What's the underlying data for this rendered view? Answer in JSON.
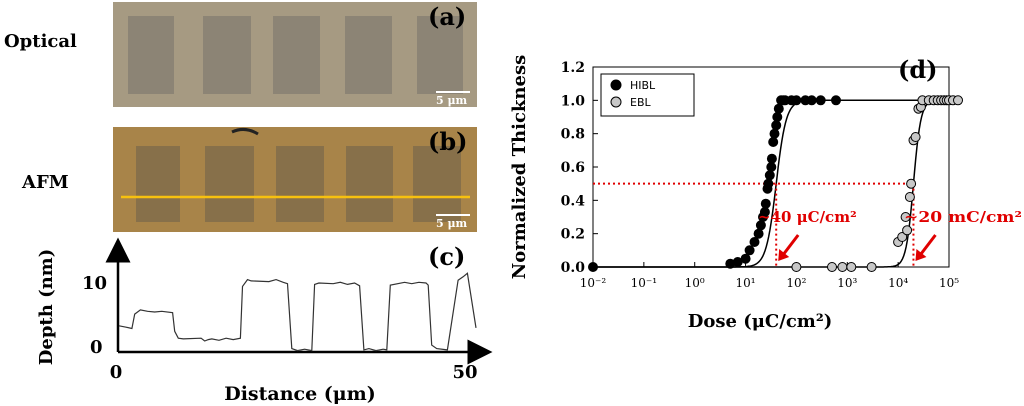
{
  "figure": {
    "panel_labels": {
      "a": "(a)",
      "b": "(b)",
      "c": "(c)",
      "d": "(d)"
    },
    "row_labels": {
      "optical": "Optical",
      "afm": "AFM"
    },
    "scale_bars": {
      "a": "5 μm",
      "b": "5 μm"
    },
    "colors": {
      "optical_bg": "#a69a82",
      "optical_pad": "#8c8475",
      "afm_bg": "#a88449",
      "afm_pad": "#87704a",
      "afm_line": "#f7c10f",
      "highlight": "#e00000"
    }
  },
  "chart_data": [
    {
      "type": "line",
      "panel": "(c)",
      "xlabel": "Distance (μm)",
      "ylabel": "Depth (nm)",
      "xticks": [
        "0",
        "50"
      ],
      "yticks": [
        "0",
        "10"
      ],
      "xlim": [
        0,
        50
      ],
      "ylim": [
        0,
        12
      ],
      "series": [
        {
          "x": [
            0,
            1,
            1.8,
            2.2,
            3,
            4,
            5,
            6,
            7.5,
            7.8,
            8.3,
            9,
            11.5,
            12,
            12.5,
            13,
            14,
            15,
            16,
            17,
            17.3,
            18,
            18.5,
            21,
            22,
            23,
            23.6,
            24.2,
            25,
            26,
            27,
            27.4,
            28,
            30,
            31,
            32,
            33,
            33.7,
            34.3,
            35,
            36,
            37,
            37.5,
            38,
            40,
            41,
            42,
            43,
            43.3,
            43.8,
            44.5,
            46,
            47.5,
            48.2,
            48.8,
            50
          ],
          "y": [
            3.8,
            3.6,
            3.4,
            5.5,
            6.1,
            5.9,
            5.8,
            5.9,
            5.7,
            3.0,
            2.0,
            1.9,
            2.0,
            1.6,
            1.8,
            1.9,
            1.7,
            2.0,
            1.8,
            2.0,
            9.5,
            10.5,
            10.3,
            10.2,
            10.5,
            10.1,
            9.9,
            0.5,
            0.2,
            0.4,
            0.2,
            9.8,
            10.0,
            9.9,
            10.1,
            9.8,
            10.0,
            9.6,
            0.3,
            0.5,
            0.2,
            0.4,
            0.3,
            9.7,
            10.1,
            9.9,
            10.1,
            10.0,
            9.7,
            1.0,
            0.5,
            0.3,
            10.4,
            10.9,
            11.4,
            3.5
          ]
        }
      ]
    },
    {
      "type": "scatter",
      "panel": "(d)",
      "xlabel": "Dose (μC/cm²)",
      "ylabel": "Normalized Thickness",
      "xscale": "log",
      "xlim": [
        0.01,
        100000
      ],
      "ylim": [
        0,
        1.2
      ],
      "xticks": [
        "10⁻²",
        "10⁻¹",
        "10⁰",
        "10¹",
        "10²",
        "10³",
        "10⁴",
        "10⁵"
      ],
      "yticks": [
        "0.0",
        "0.2",
        "0.4",
        "0.6",
        "0.8",
        "1.0",
        "1.2"
      ],
      "legend_position": "top-left",
      "series": [
        {
          "name": "HIBL",
          "color": "#000000",
          "x": [
            0.01,
            5,
            7,
            10,
            12,
            15,
            18,
            20,
            22,
            24,
            25,
            27,
            28,
            30,
            32,
            33,
            35,
            37,
            40,
            42,
            45,
            50,
            55,
            60,
            80,
            100,
            150,
            200,
            300,
            600
          ],
          "y": [
            0.0,
            0.02,
            0.03,
            0.05,
            0.1,
            0.15,
            0.2,
            0.25,
            0.3,
            0.33,
            0.38,
            0.47,
            0.5,
            0.55,
            0.6,
            0.65,
            0.75,
            0.8,
            0.85,
            0.9,
            0.95,
            1.0,
            1.0,
            1.0,
            1.0,
            1.0,
            1.0,
            1.0,
            1.0,
            1.0
          ]
        },
        {
          "name": "EBL",
          "color": "#c8c8c8",
          "x": [
            100,
            500,
            800,
            1200,
            3000,
            10000,
            12000,
            14000,
            15000,
            17000,
            18000,
            20000,
            22000,
            25000,
            28000,
            30000,
            40000,
            50000,
            60000,
            70000,
            80000,
            90000,
            100000,
            120000,
            150000
          ],
          "y": [
            0.0,
            0.0,
            0.0,
            0.0,
            0.0,
            0.15,
            0.18,
            0.3,
            0.22,
            0.42,
            0.5,
            0.76,
            0.78,
            0.95,
            0.96,
            1.0,
            1.0,
            1.0,
            1.0,
            1.0,
            1.0,
            1.0,
            1.0,
            1.0,
            1.0
          ]
        }
      ],
      "fit_curves": [
        {
          "series": "HIBL",
          "d50": 40,
          "k": 4.4
        },
        {
          "series": "EBL",
          "d50": 20000,
          "k": 6.0
        }
      ],
      "annotations": {
        "hibl_text": "~40 μC/cm²",
        "ebl_text": "~20 mC/cm²",
        "hibl_dose": 40,
        "ebl_dose": 20000,
        "level": 0.5
      }
    }
  ]
}
